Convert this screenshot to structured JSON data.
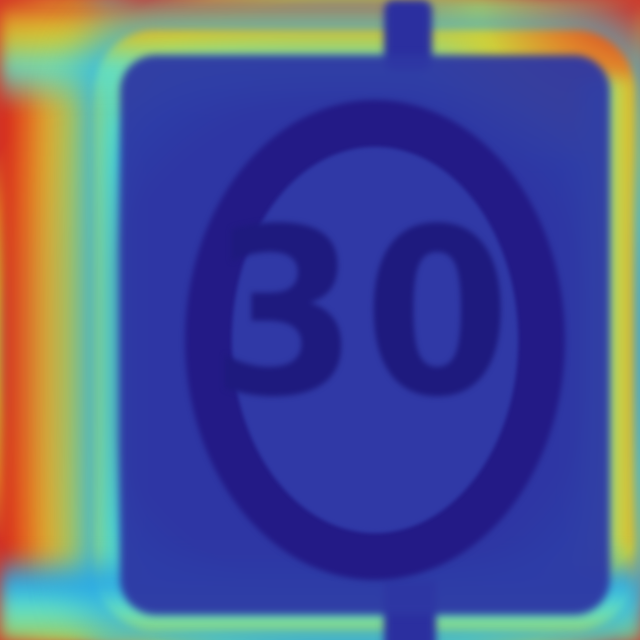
{
  "image": {
    "kind": "heatmap-overlay-photo",
    "subject": "speed-limit-sign",
    "sign_text": "30",
    "colors": {
      "hot": "#d01e1e",
      "warm": "#e3a22a",
      "mid": "#cdd03a",
      "cool": "#57d6c3",
      "cold": "#2f36a6",
      "ring": "#231a86",
      "digits": "#1e1a7e"
    }
  }
}
